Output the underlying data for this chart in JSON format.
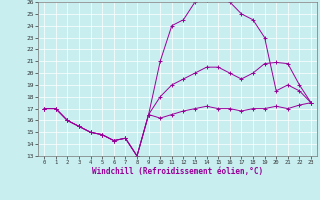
{
  "xlabel": "Windchill (Refroidissement éolien,°C)",
  "xlim": [
    -0.5,
    23.5
  ],
  "ylim": [
    13,
    26
  ],
  "xticks": [
    0,
    1,
    2,
    3,
    4,
    5,
    6,
    7,
    8,
    9,
    10,
    11,
    12,
    13,
    14,
    15,
    16,
    17,
    18,
    19,
    20,
    21,
    22,
    23
  ],
  "yticks": [
    13,
    14,
    15,
    16,
    17,
    18,
    19,
    20,
    21,
    22,
    23,
    24,
    25,
    26
  ],
  "bg_color": "#c8eef0",
  "line_color": "#990099",
  "line1_x": [
    0,
    1,
    2,
    3,
    4,
    5,
    6,
    7,
    8,
    9,
    10,
    11,
    12,
    13,
    14,
    15,
    16,
    17,
    18,
    19,
    20,
    21,
    22,
    23
  ],
  "line1_y": [
    17.0,
    17.0,
    16.0,
    15.5,
    15.0,
    14.8,
    14.3,
    14.5,
    13.0,
    16.5,
    16.2,
    16.5,
    16.8,
    17.0,
    17.2,
    17.0,
    17.0,
    16.8,
    17.0,
    17.0,
    17.2,
    17.0,
    17.3,
    17.5
  ],
  "line2_x": [
    0,
    1,
    2,
    3,
    4,
    5,
    6,
    7,
    8,
    9,
    10,
    11,
    12,
    13,
    14,
    15,
    16,
    17,
    18,
    19,
    20,
    21,
    22,
    23
  ],
  "line2_y": [
    17.0,
    17.0,
    16.0,
    15.5,
    15.0,
    14.8,
    14.3,
    14.5,
    13.0,
    16.5,
    21.0,
    24.0,
    24.5,
    26.0,
    26.2,
    26.5,
    26.0,
    25.0,
    24.5,
    23.0,
    18.5,
    19.0,
    18.5,
    17.5
  ],
  "line3_x": [
    0,
    1,
    2,
    3,
    4,
    5,
    6,
    7,
    8,
    9,
    10,
    11,
    12,
    13,
    14,
    15,
    16,
    17,
    18,
    19,
    20,
    21,
    22,
    23
  ],
  "line3_y": [
    17.0,
    17.0,
    16.0,
    15.5,
    15.0,
    14.8,
    14.3,
    14.5,
    13.0,
    16.5,
    18.0,
    19.0,
    19.5,
    20.0,
    20.5,
    20.5,
    20.0,
    19.5,
    20.0,
    20.8,
    20.9,
    20.8,
    19.0,
    17.5
  ]
}
